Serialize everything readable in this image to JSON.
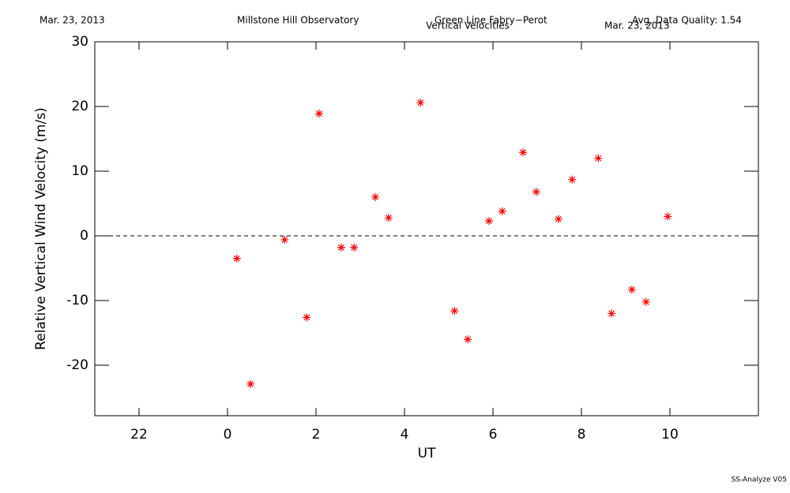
{
  "header": {
    "date_left": "Mar. 23, 2013",
    "observatory": "Millstone Hill Observatory",
    "instrument": "Green Line Fabry−Perot",
    "quality": "Avg. Data Quality: 1.54",
    "date_right": "Mar. 23, 2013"
  },
  "footer": "SS-Analyze V05",
  "chart_data": {
    "type": "scatter",
    "title": "Vertical Velocities",
    "x_label": "UT",
    "y_label": "Relative Vertical Wind Velocity (m/s)",
    "color": "#ff0000",
    "x": [
      0.21,
      0.52,
      1.29,
      1.79,
      2.07,
      2.57,
      2.86,
      3.34,
      3.64,
      4.36,
      5.13,
      5.43,
      5.91,
      6.21,
      6.68,
      6.98,
      7.48,
      7.79,
      8.38,
      8.68,
      9.14,
      9.46,
      9.95
    ],
    "values": [
      -3.5,
      -22.9,
      -0.6,
      -12.6,
      18.9,
      -1.8,
      -1.8,
      6.0,
      2.8,
      20.6,
      -11.6,
      -16.0,
      2.3,
      3.8,
      12.9,
      6.8,
      2.6,
      8.7,
      12.0,
      -12.0,
      -8.3,
      -10.2,
      3.0
    ],
    "xlim": [
      -3,
      12
    ],
    "xticks": [
      {
        "value": -2,
        "label": "22"
      },
      0,
      2,
      4,
      6,
      8,
      10
    ],
    "ylim": [
      -27.8,
      30
    ],
    "yticks": [
      -20,
      -10,
      0,
      10,
      20,
      30
    ],
    "hline": 0
  }
}
